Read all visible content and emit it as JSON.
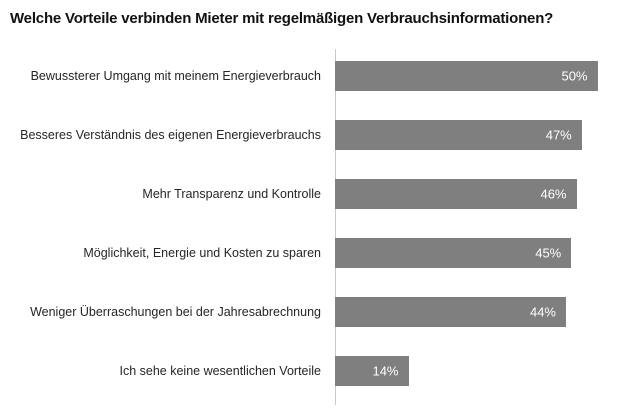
{
  "chart_data": {
    "type": "bar",
    "orientation": "horizontal",
    "title": "Welche Vorteile verbinden Mieter mit regelmäßigen Verbrauchsinformationen?",
    "categories": [
      "Bewussterer Umgang mit meinem Energieverbrauch",
      "Besseres Verständnis des eigenen Energieverbrauchs",
      "Mehr Transparenz und Kontrolle",
      "Möglichkeit, Energie und Kosten zu sparen",
      "Weniger Überraschungen bei der Jahresabrechnung",
      "Ich sehe keine wesentlichen Vorteile"
    ],
    "values": [
      50,
      47,
      46,
      45,
      44,
      14
    ],
    "value_suffix": "%",
    "xlim": [
      0,
      52
    ],
    "grid": false,
    "legend": false,
    "bar_color": "#7f7f7f",
    "value_label_color": "#ffffff",
    "axis_line_color": "#c9c9c9"
  }
}
